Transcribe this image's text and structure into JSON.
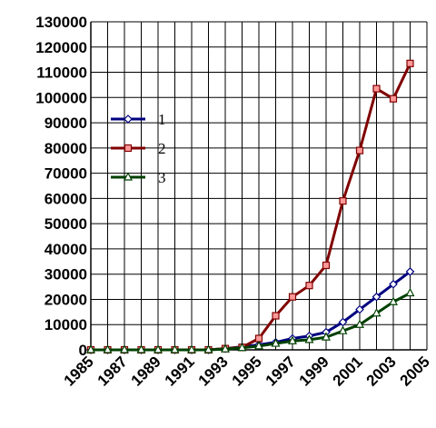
{
  "chart_data": {
    "type": "line",
    "title": "",
    "xlabel": "",
    "ylabel": "",
    "xlim": [
      1985,
      2005
    ],
    "ylim": [
      0,
      130000
    ],
    "grid": true,
    "legend_position": "upper-left",
    "x_ticks": [
      1985,
      1987,
      1989,
      1991,
      1993,
      1995,
      1997,
      1999,
      2001,
      2003,
      2005
    ],
    "y_ticks": [
      0,
      10000,
      20000,
      30000,
      40000,
      50000,
      60000,
      70000,
      80000,
      90000,
      100000,
      110000,
      120000,
      130000
    ],
    "x": [
      1985,
      1986,
      1987,
      1988,
      1989,
      1990,
      1991,
      1992,
      1993,
      1994,
      1995,
      1996,
      1997,
      1998,
      1999,
      2000,
      2001,
      2002,
      2003,
      2004
    ],
    "series": [
      {
        "name": "1",
        "color": "#000080",
        "marker": "diamond",
        "marker_fill": "#ffffff",
        "values": [
          0,
          0,
          0,
          0,
          0,
          0,
          0,
          0,
          500,
          1200,
          2000,
          3000,
          4500,
          5500,
          7000,
          11000,
          16000,
          21000,
          26000,
          31000
        ]
      },
      {
        "name": "2",
        "color": "#800000",
        "marker": "square",
        "marker_fill": "#ff9999",
        "values": [
          0,
          0,
          0,
          0,
          0,
          0,
          0,
          0,
          500,
          1000,
          4500,
          13500,
          21000,
          25500,
          33500,
          59000,
          79000,
          103500,
          99500,
          113500
        ]
      },
      {
        "name": "3",
        "color": "#004000",
        "marker": "triangle",
        "marker_fill": "#ffffff",
        "values": [
          0,
          0,
          0,
          0,
          0,
          0,
          0,
          0,
          300,
          800,
          1500,
          2500,
          3500,
          4000,
          5000,
          7500,
          10000,
          14500,
          19000,
          22500
        ]
      }
    ]
  }
}
